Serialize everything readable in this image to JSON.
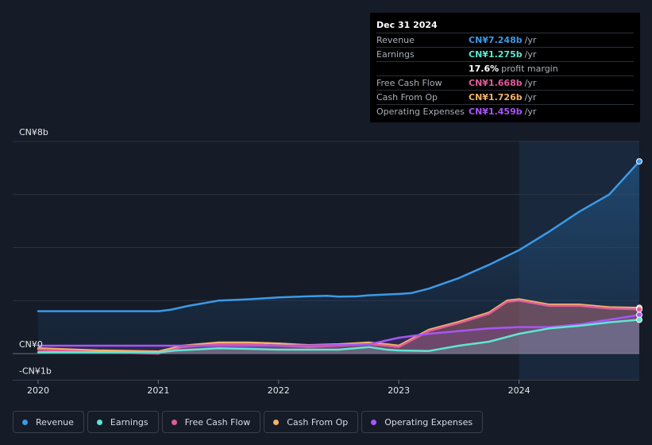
{
  "tooltip": {
    "date": "Dec 31 2024",
    "rows": [
      {
        "label": "Revenue",
        "value": "CN¥7.248b",
        "unit": "/yr",
        "color": "#3b9ae8"
      },
      {
        "label": "Earnings",
        "value": "CN¥1.275b",
        "unit": "/yr",
        "color": "#5ee6d2"
      },
      {
        "label": "",
        "value": "17.6%",
        "unit": "profit margin",
        "color": "#ffffff"
      },
      {
        "label": "Free Cash Flow",
        "value": "CN¥1.668b",
        "unit": "/yr",
        "color": "#e05c9a"
      },
      {
        "label": "Cash From Op",
        "value": "CN¥1.726b",
        "unit": "/yr",
        "color": "#f2b26b"
      },
      {
        "label": "Operating Expenses",
        "value": "CN¥1.459b",
        "unit": "/yr",
        "color": "#a855f7"
      }
    ]
  },
  "legend": [
    {
      "label": "Revenue",
      "color": "#3b9ae8"
    },
    {
      "label": "Earnings",
      "color": "#5ee6d2"
    },
    {
      "label": "Free Cash Flow",
      "color": "#e05c9a"
    },
    {
      "label": "Cash From Op",
      "color": "#f2b26b"
    },
    {
      "label": "Operating Expenses",
      "color": "#a855f7"
    }
  ],
  "chart_data": {
    "type": "area",
    "y_unit": "CN¥b",
    "ylim": [
      -1,
      8
    ],
    "y_tick_labels": [
      {
        "value": 8,
        "label": "CN¥8b"
      },
      {
        "value": 0,
        "label": "CN¥0"
      },
      {
        "value": -1,
        "label": "-CN¥1b"
      }
    ],
    "x_tick_labels": [
      "2020",
      "2021",
      "2022",
      "2023",
      "2024"
    ],
    "x_ticks": [
      2020,
      2021,
      2022,
      2023,
      2024
    ],
    "xlim": [
      2019.78,
      2025.0
    ],
    "highlight_start": 2024.0,
    "grid": true,
    "series": [
      {
        "name": "Revenue",
        "color": "#3b9ae8",
        "points": [
          [
            2020.0,
            1.6
          ],
          [
            2020.5,
            1.6
          ],
          [
            2021.0,
            1.6
          ],
          [
            2021.1,
            1.65
          ],
          [
            2021.25,
            1.8
          ],
          [
            2021.5,
            2.0
          ],
          [
            2021.75,
            2.05
          ],
          [
            2022.0,
            2.12
          ],
          [
            2022.25,
            2.16
          ],
          [
            2022.4,
            2.18
          ],
          [
            2022.5,
            2.15
          ],
          [
            2022.65,
            2.16
          ],
          [
            2022.75,
            2.2
          ],
          [
            2023.0,
            2.25
          ],
          [
            2023.1,
            2.28
          ],
          [
            2023.25,
            2.45
          ],
          [
            2023.5,
            2.85
          ],
          [
            2023.75,
            3.35
          ],
          [
            2024.0,
            3.9
          ],
          [
            2024.25,
            4.6
          ],
          [
            2024.5,
            5.35
          ],
          [
            2024.75,
            6.0
          ],
          [
            2025.0,
            6.65
          ],
          [
            2025.0,
            7.248
          ]
        ]
      },
      {
        "name": "Earnings",
        "color": "#5ee6d2",
        "points": [
          [
            2020.0,
            0.05
          ],
          [
            2020.5,
            0.05
          ],
          [
            2021.0,
            0.05
          ],
          [
            2021.15,
            0.12
          ],
          [
            2021.5,
            0.2
          ],
          [
            2021.75,
            0.18
          ],
          [
            2022.0,
            0.15
          ],
          [
            2022.25,
            0.15
          ],
          [
            2022.5,
            0.15
          ],
          [
            2022.75,
            0.25
          ],
          [
            2022.9,
            0.15
          ],
          [
            2023.0,
            0.12
          ],
          [
            2023.25,
            0.1
          ],
          [
            2023.5,
            0.3
          ],
          [
            2023.75,
            0.45
          ],
          [
            2024.0,
            0.75
          ],
          [
            2024.25,
            0.95
          ],
          [
            2024.5,
            1.05
          ],
          [
            2024.75,
            1.18
          ],
          [
            2025.0,
            1.275
          ]
        ]
      },
      {
        "name": "Free Cash Flow",
        "color": "#e05c9a",
        "points": [
          [
            2020.0,
            0.15
          ],
          [
            2020.5,
            0.05
          ],
          [
            2021.0,
            0.0
          ],
          [
            2021.2,
            0.25
          ],
          [
            2021.5,
            0.35
          ],
          [
            2021.75,
            0.35
          ],
          [
            2022.0,
            0.3
          ],
          [
            2022.25,
            0.25
          ],
          [
            2022.5,
            0.3
          ],
          [
            2022.75,
            0.35
          ],
          [
            2022.9,
            0.3
          ],
          [
            2023.0,
            0.25
          ],
          [
            2023.25,
            0.85
          ],
          [
            2023.5,
            1.15
          ],
          [
            2023.75,
            1.5
          ],
          [
            2023.9,
            1.95
          ],
          [
            2024.0,
            2.0
          ],
          [
            2024.25,
            1.8
          ],
          [
            2024.5,
            1.8
          ],
          [
            2024.75,
            1.7
          ],
          [
            2025.0,
            1.668
          ]
        ]
      },
      {
        "name": "Cash From Op",
        "color": "#f2b26b",
        "points": [
          [
            2020.0,
            0.2
          ],
          [
            2020.5,
            0.12
          ],
          [
            2021.0,
            0.08
          ],
          [
            2021.2,
            0.3
          ],
          [
            2021.5,
            0.42
          ],
          [
            2021.75,
            0.42
          ],
          [
            2022.0,
            0.38
          ],
          [
            2022.25,
            0.32
          ],
          [
            2022.5,
            0.35
          ],
          [
            2022.75,
            0.42
          ],
          [
            2022.9,
            0.35
          ],
          [
            2023.0,
            0.3
          ],
          [
            2023.25,
            0.9
          ],
          [
            2023.5,
            1.2
          ],
          [
            2023.75,
            1.55
          ],
          [
            2023.9,
            2.0
          ],
          [
            2024.0,
            2.05
          ],
          [
            2024.25,
            1.85
          ],
          [
            2024.5,
            1.85
          ],
          [
            2024.75,
            1.75
          ],
          [
            2025.0,
            1.726
          ]
        ]
      },
      {
        "name": "Operating Expenses",
        "color": "#a855f7",
        "points": [
          [
            2020.0,
            0.3
          ],
          [
            2020.5,
            0.3
          ],
          [
            2021.0,
            0.3
          ],
          [
            2021.5,
            0.3
          ],
          [
            2022.0,
            0.3
          ],
          [
            2022.5,
            0.32
          ],
          [
            2022.75,
            0.35
          ],
          [
            2023.0,
            0.6
          ],
          [
            2023.25,
            0.75
          ],
          [
            2023.5,
            0.85
          ],
          [
            2023.75,
            0.95
          ],
          [
            2024.0,
            1.0
          ],
          [
            2024.25,
            1.0
          ],
          [
            2024.5,
            1.1
          ],
          [
            2024.75,
            1.28
          ],
          [
            2025.0,
            1.459
          ]
        ]
      }
    ]
  }
}
